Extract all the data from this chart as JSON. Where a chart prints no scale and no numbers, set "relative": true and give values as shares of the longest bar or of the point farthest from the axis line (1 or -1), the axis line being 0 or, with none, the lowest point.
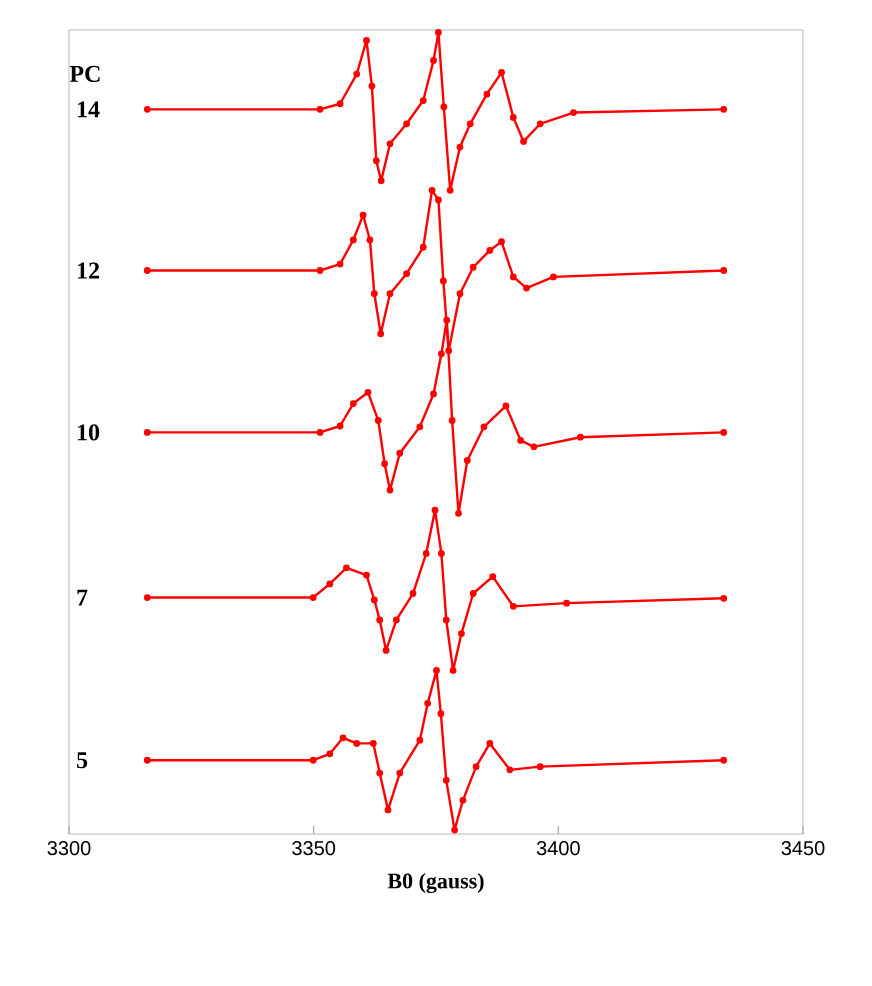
{
  "chart_data": {
    "type": "line",
    "relative": true,
    "xlabel": "B0 (gauss)",
    "legend_title": "PC",
    "marker": "circle",
    "xlim": [
      3300,
      3450
    ],
    "xticks": [
      3300,
      3350,
      3400,
      3450
    ],
    "series": [
      {
        "name": "14",
        "color": "#ff0000",
        "x": [
          3316,
          3351.3,
          3355.4,
          3358.8,
          3360.8,
          3361.9,
          3362.8,
          3363.8,
          3365.6,
          3369.0,
          3372.4,
          3374.5,
          3375.5,
          3376.6,
          3377.9,
          3379.9,
          3382.0,
          3385.4,
          3388.4,
          3390.8,
          3392.9,
          3396.3,
          3403.1,
          3433.8
        ],
        "values": [
          0.904,
          0.904,
          0.911,
          0.948,
          0.99,
          0.933,
          0.84,
          0.815,
          0.861,
          0.886,
          0.915,
          0.965,
          1.0,
          0.907,
          0.803,
          0.857,
          0.886,
          0.923,
          0.95,
          0.894,
          0.864,
          0.886,
          0.9,
          0.904
        ]
      },
      {
        "name": "12",
        "color": "#ff0000",
        "x": [
          3316,
          3351.3,
          3355.4,
          3358.1,
          3360.1,
          3361.5,
          3362.4,
          3363.7,
          3365.6,
          3369.0,
          3372.4,
          3374.2,
          3375.5,
          3376.5,
          3377.6,
          3379.9,
          3382.6,
          3386.0,
          3388.4,
          3390.8,
          3393.5,
          3399.0,
          3433.8
        ],
        "values": [
          0.703,
          0.703,
          0.711,
          0.741,
          0.772,
          0.741,
          0.674,
          0.624,
          0.674,
          0.699,
          0.732,
          0.803,
          0.791,
          0.69,
          0.603,
          0.674,
          0.707,
          0.728,
          0.739,
          0.695,
          0.681,
          0.695,
          0.703
        ]
      },
      {
        "name": "10",
        "color": "#ff0000",
        "x": [
          3316,
          3351.3,
          3355.4,
          3358.1,
          3361.1,
          3363.2,
          3364.5,
          3365.6,
          3367.6,
          3371.7,
          3374.5,
          3376.1,
          3377.2,
          3378.3,
          3379.6,
          3381.4,
          3384.8,
          3389.3,
          3392.3,
          3395.0,
          3404.5,
          3433.8
        ],
        "values": [
          0.501,
          0.501,
          0.509,
          0.537,
          0.551,
          0.516,
          0.462,
          0.429,
          0.475,
          0.508,
          0.549,
          0.599,
          0.641,
          0.516,
          0.4,
          0.466,
          0.508,
          0.534,
          0.491,
          0.483,
          0.495,
          0.501
        ]
      },
      {
        "name": "7",
        "color": "#ff0000",
        "x": [
          3316,
          3349.9,
          3353.3,
          3356.7,
          3360.8,
          3362.4,
          3363.5,
          3364.8,
          3366.9,
          3370.3,
          3373.0,
          3374.8,
          3376.1,
          3377.1,
          3378.5,
          3380.2,
          3382.6,
          3386.6,
          3390.8,
          3401.7,
          3433.8
        ],
        "values": [
          0.295,
          0.295,
          0.312,
          0.332,
          0.323,
          0.292,
          0.267,
          0.229,
          0.267,
          0.3,
          0.35,
          0.404,
          0.35,
          0.267,
          0.204,
          0.25,
          0.3,
          0.321,
          0.284,
          0.288,
          0.294
        ]
      },
      {
        "name": "5",
        "color": "#ff0000",
        "x": [
          3316,
          3349.9,
          3353.3,
          3356.0,
          3358.8,
          3362.2,
          3363.5,
          3365.2,
          3367.6,
          3371.7,
          3373.3,
          3375.1,
          3376.0,
          3377.1,
          3378.8,
          3380.5,
          3383.2,
          3386.0,
          3390.1,
          3396.3,
          3433.8
        ],
        "values": [
          0.092,
          0.092,
          0.1,
          0.12,
          0.113,
          0.113,
          0.076,
          0.03,
          0.076,
          0.117,
          0.163,
          0.204,
          0.15,
          0.067,
          0.005,
          0.042,
          0.084,
          0.113,
          0.08,
          0.084,
          0.092
        ]
      }
    ]
  }
}
